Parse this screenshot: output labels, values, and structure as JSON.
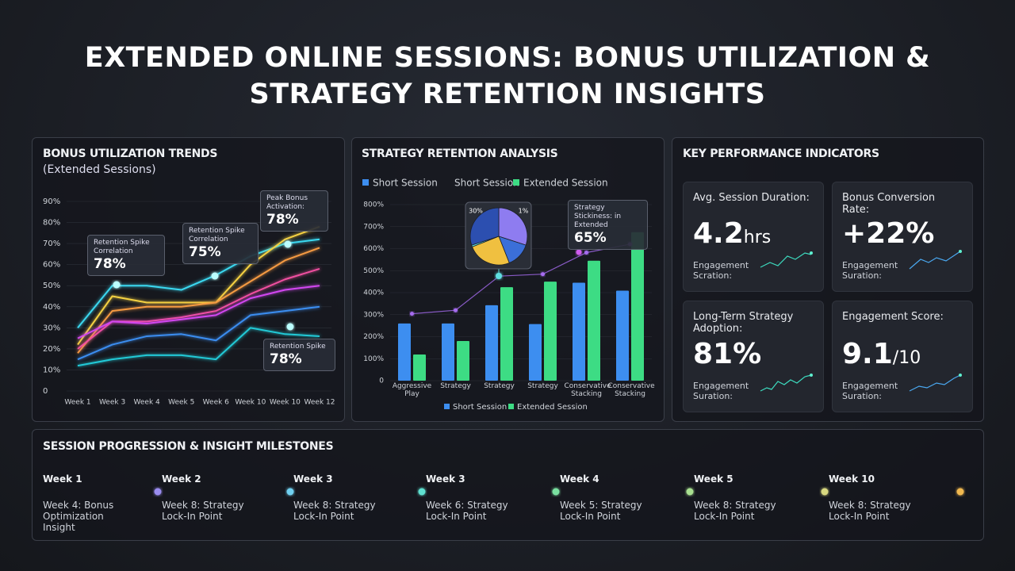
{
  "title": "EXTENDED ONLINE SESSIONS: BONUS UTILIZATION & STRATEGY RETENTION INSIGHTS",
  "chart_data": [
    {
      "type": "line",
      "title": "BONUS UTILIZATION TRENDS",
      "subtitle": "(Extended Sessions)",
      "categories": [
        "Week 1",
        "Week 3",
        "Week 4",
        "Week 5",
        "Week 6",
        "Week 10",
        "Week 10",
        "Week 12"
      ],
      "series": [
        {
          "color": "#3ad8f0",
          "values": [
            30,
            50,
            50,
            48,
            55,
            64,
            70,
            72
          ]
        },
        {
          "color": "#f5d142",
          "values": [
            22,
            45,
            42,
            42,
            42,
            60,
            72,
            78
          ]
        },
        {
          "color": "#f59a42",
          "values": [
            18,
            38,
            40,
            40,
            42,
            52,
            62,
            68
          ]
        },
        {
          "color": "#f04fa0",
          "values": [
            20,
            33,
            33,
            35,
            38,
            46,
            53,
            58
          ]
        },
        {
          "color": "#d246f0",
          "values": [
            25,
            33,
            32,
            34,
            36,
            44,
            48,
            50
          ]
        },
        {
          "color": "#3b8df0",
          "values": [
            15,
            22,
            26,
            27,
            24,
            36,
            38,
            40
          ]
        },
        {
          "color": "#22c9d6",
          "values": [
            12,
            15,
            17,
            17,
            15,
            30,
            27,
            26
          ]
        }
      ],
      "ylim": [
        0,
        90
      ],
      "yticks": [
        {
          "value": 0,
          "label": "0"
        },
        {
          "value": 10,
          "label": "10%"
        },
        {
          "value": 20,
          "label": "20%"
        },
        {
          "value": 30,
          "label": "30%"
        },
        {
          "value": 40,
          "label": "40%"
        },
        {
          "value": 50,
          "label": "50%"
        },
        {
          "value": 60,
          "label": "60%"
        },
        {
          "value": 70,
          "label": "70%"
        },
        {
          "value": 80,
          "label": "80%"
        },
        {
          "value": 90,
          "label": "90%"
        }
      ],
      "annotations": [
        {
          "text": "Retention Spike Correlation",
          "value": "78%"
        },
        {
          "text": "Retention Spike Correlation",
          "value": "75%"
        },
        {
          "text": "Peak Bonus Activation:",
          "value": "78%"
        },
        {
          "text": "Retention Spike",
          "value": "78%"
        }
      ]
    },
    {
      "type": "bar",
      "title": "STRATEGY RETENTION ANALYSIS",
      "categories": [
        "Aggressive Play",
        "Strategy",
        "Strategy",
        "Strategy",
        "Conservative Stacking",
        "Conservative Stacking"
      ],
      "series": [
        {
          "name": "Short Session",
          "color": "#3d8ef0",
          "values": [
            260,
            260,
            343,
            257,
            445,
            409
          ]
        },
        {
          "name": "Extended Session",
          "color": "#3ddc84",
          "values": [
            119,
            180,
            425,
            450,
            545,
            675
          ]
        },
        {
          "color": "#a66cf0",
          "type": "line",
          "values": [
            304,
            320,
            475,
            484,
            582,
            620
          ]
        }
      ],
      "ylim": [
        0,
        800
      ],
      "yticks": [
        {
          "value": 0,
          "label": "0"
        },
        {
          "value": 100,
          "label": "100%"
        },
        {
          "value": 200,
          "label": "200%"
        },
        {
          "value": 300,
          "label": "300%"
        },
        {
          "value": 400,
          "label": "400%"
        },
        {
          "value": 500,
          "label": "500%"
        },
        {
          "value": 600,
          "label": "600%"
        },
        {
          "value": 700,
          "label": "700%"
        },
        {
          "value": 800,
          "label": "800%"
        }
      ],
      "annotations": [
        {
          "text": "Strategy Stickiness: in Extended",
          "value": "65%"
        }
      ]
    },
    {
      "type": "pie",
      "values": [
        30,
        14,
        25,
        1,
        30
      ],
      "value_labels": [
        "30%",
        null,
        null,
        "1%",
        null
      ],
      "colors": [
        "#8e7cf0",
        "#3b6fd8",
        "#f0c040",
        "#5ee0e0",
        "#2c4fb0"
      ]
    }
  ],
  "kpi_panel": {
    "title": "KEY PERFORMANCE INDICATORS",
    "cards": [
      {
        "label": "Avg. Session Duration:",
        "value": "4.2",
        "unit": "hrs",
        "note": "Engagement Scration:"
      },
      {
        "label": "Bonus Conversion Rate:",
        "value": "+22%",
        "note": "Engagement Suration:"
      },
      {
        "label": "Long-Term Strategy Adoption:",
        "value": "81%",
        "note": "Engagement Suration:"
      },
      {
        "label": "Engagement Score:",
        "value": "9.1",
        "unit": "/10",
        "note": "Engagement Suration:"
      }
    ]
  },
  "timeline": {
    "title": "SESSION PROGRESSION & INSIGHT MILESTONES",
    "items": [
      {
        "week": "Week 1",
        "text": "Week 4: Bonus Optimization Insight"
      },
      {
        "week": "Week 2",
        "text": "Week 8: Strategy Lock-In Point"
      },
      {
        "week": "Week 3",
        "text": "Week 8: Strategy Lock-In Point"
      },
      {
        "week": "Week 3",
        "text": "Week 6: Strategy Lock-In Point"
      },
      {
        "week": "Week 4",
        "text": "Week 5: Strategy Lock-In Point"
      },
      {
        "week": "Week 5",
        "text": "Week 8: Strategy Lock-In Point"
      },
      {
        "week": "Week 10",
        "text": "Week 8: Strategy Lock-In Point"
      }
    ]
  }
}
